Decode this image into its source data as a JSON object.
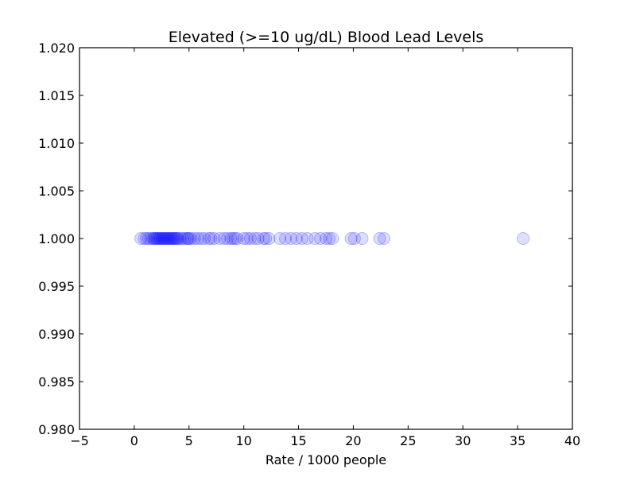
{
  "chart_data": {
    "type": "scatter",
    "title": "Elevated (>=10 ug/dL) Blood Lead Levels",
    "xlabel": "Rate / 1000 people",
    "ylabel": "",
    "xlim": [
      -5,
      40
    ],
    "ylim": [
      0.98,
      1.02
    ],
    "xticks": [
      -5,
      0,
      5,
      10,
      15,
      20,
      25,
      30,
      35,
      40
    ],
    "xtick_labels": [
      "−5",
      "0",
      "5",
      "10",
      "15",
      "20",
      "25",
      "30",
      "35",
      "40"
    ],
    "yticks": [
      0.98,
      0.985,
      0.99,
      0.995,
      1.0,
      1.005,
      1.01,
      1.015,
      1.02
    ],
    "ytick_labels": [
      "0.980",
      "0.985",
      "0.990",
      "0.995",
      "1.000",
      "1.005",
      "1.010",
      "1.015",
      "1.020"
    ],
    "grid": false,
    "marker_color": "#0000ff",
    "marker_alpha": 0.13,
    "series": [
      {
        "x": [
          0.6,
          0.9,
          1.1,
          1.3,
          1.5,
          1.7,
          1.8,
          1.9,
          2.0,
          2.1,
          2.2,
          2.3,
          2.4,
          2.5,
          2.6,
          2.7,
          2.8,
          2.9,
          3.0,
          3.1,
          3.2,
          3.3,
          3.4,
          3.5,
          3.6,
          3.7,
          3.8,
          3.9,
          4.0,
          4.2,
          4.4,
          4.6,
          4.8,
          4.9,
          5.0,
          5.2,
          5.5,
          5.8,
          6.1,
          6.4,
          6.8,
          7.0,
          7.3,
          7.8,
          8.2,
          8.5,
          8.8,
          9.0,
          9.2,
          9.4,
          10.0,
          10.3,
          10.6,
          11.0,
          11.3,
          11.8,
          12.0,
          12.3,
          13.3,
          13.8,
          14.3,
          14.8,
          15.3,
          15.8,
          16.5,
          17.0,
          17.5,
          17.8,
          18.1,
          19.8,
          20.1,
          20.8,
          22.4,
          22.8,
          35.5
        ],
        "y": [
          1.0,
          1.0,
          1.0,
          1.0,
          1.0,
          1.0,
          1.0,
          1.0,
          1.0,
          1.0,
          1.0,
          1.0,
          1.0,
          1.0,
          1.0,
          1.0,
          1.0,
          1.0,
          1.0,
          1.0,
          1.0,
          1.0,
          1.0,
          1.0,
          1.0,
          1.0,
          1.0,
          1.0,
          1.0,
          1.0,
          1.0,
          1.0,
          1.0,
          1.0,
          1.0,
          1.0,
          1.0,
          1.0,
          1.0,
          1.0,
          1.0,
          1.0,
          1.0,
          1.0,
          1.0,
          1.0,
          1.0,
          1.0,
          1.0,
          1.0,
          1.0,
          1.0,
          1.0,
          1.0,
          1.0,
          1.0,
          1.0,
          1.0,
          1.0,
          1.0,
          1.0,
          1.0,
          1.0,
          1.0,
          1.0,
          1.0,
          1.0,
          1.0,
          1.0,
          1.0,
          1.0,
          1.0,
          1.0,
          1.0,
          1.0
        ]
      }
    ]
  }
}
